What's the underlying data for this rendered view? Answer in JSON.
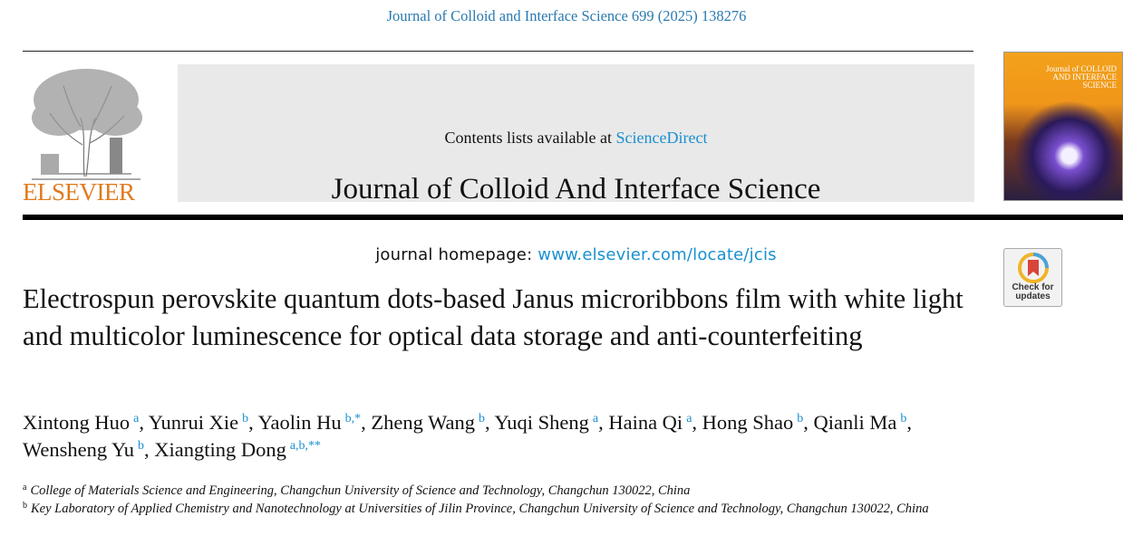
{
  "citation": "Journal of Colloid and Interface Science 699 (2025) 138276",
  "masthead": {
    "publisher": "ELSEVIER",
    "contents_prefix": "Contents lists available at",
    "contents_link": "ScienceDirect",
    "journal_title": "Journal of Colloid And Interface Science",
    "homepage_prefix": "journal homepage:",
    "homepage_link": "www.elsevier.com/locate/jcis",
    "cover_title": "Journal of COLLOID AND INTERFACE SCIENCE"
  },
  "check_badge": "Check for updates",
  "title": "Electrospun perovskite quantum dots-based Janus microribbons film with white light and multicolor luminescence for optical data storage and anti-counterfeiting",
  "authors": [
    {
      "name": "Xintong Huo",
      "sup": "a",
      "after": ","
    },
    {
      "name": "Yunrui Xie",
      "sup": "b",
      "after": ","
    },
    {
      "name": "Yaolin Hu",
      "sup": "b,*",
      "after": ","
    },
    {
      "name": "Zheng Wang",
      "sup": "b",
      "after": ","
    },
    {
      "name": "Yuqi Sheng",
      "sup": "a",
      "after": ","
    },
    {
      "name": "Haina Qi",
      "sup": "a",
      "after": ","
    },
    {
      "name": "Hong Shao",
      "sup": "b",
      "after": ","
    },
    {
      "name": "Qianli Ma",
      "sup": "b",
      "after": ","
    },
    {
      "name": "Wensheng Yu",
      "sup": "b",
      "after": ","
    },
    {
      "name": "Xiangting Dong",
      "sup": "a,b,**"
    }
  ],
  "affiliations": [
    {
      "mark": "a",
      "text": "College of Materials Science and Engineering, Changchun University of Science and Technology, Changchun 130022, China"
    },
    {
      "mark": "b",
      "text": "Key Laboratory of Applied Chemistry and Nanotechnology at Universities of Jilin Province, Changchun University of Science and Technology, Changchun 130022, China"
    }
  ]
}
